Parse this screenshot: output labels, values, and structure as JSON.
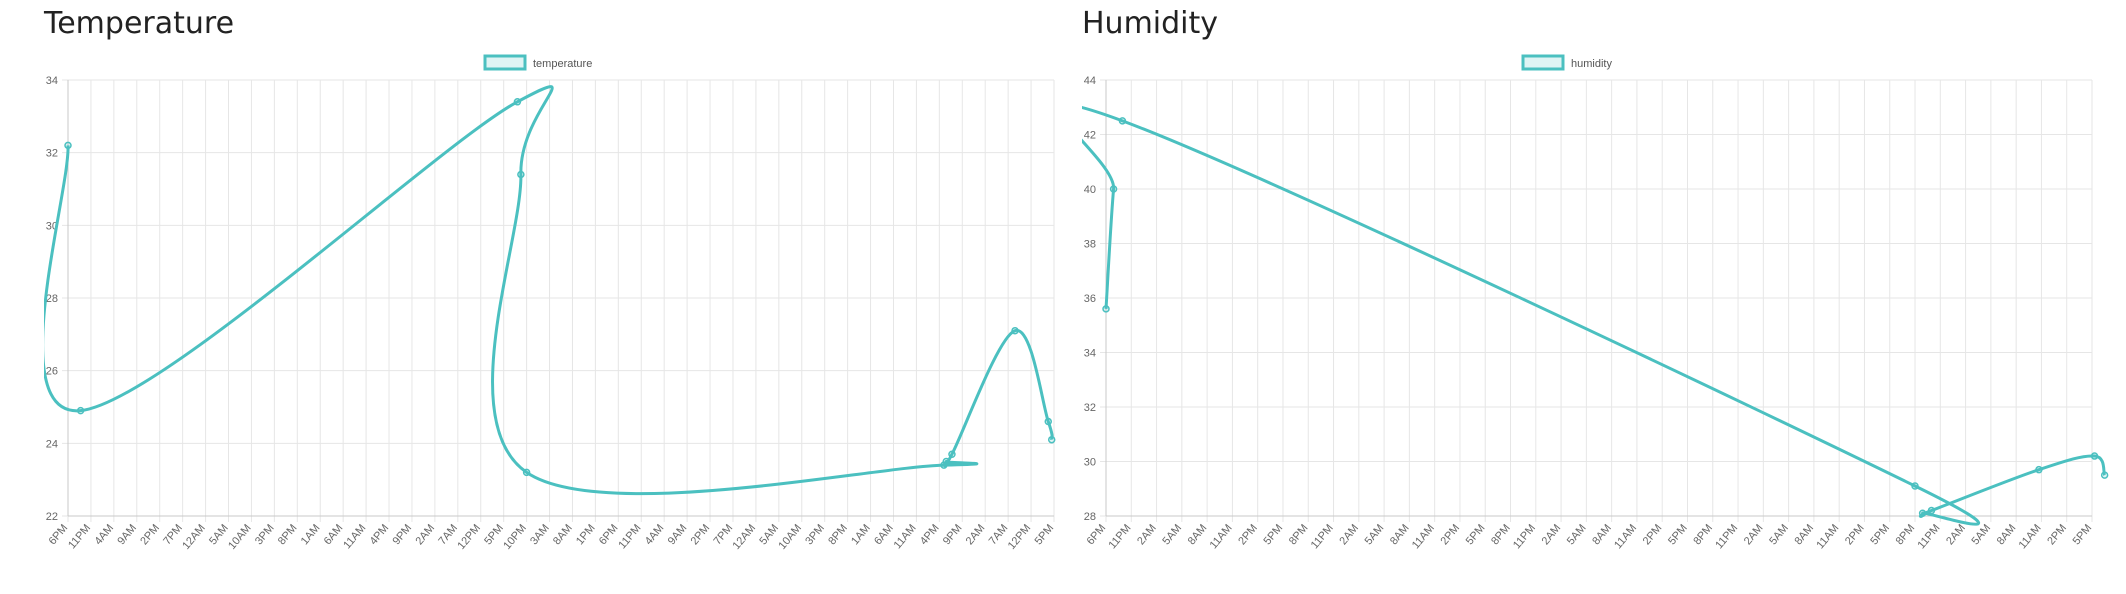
{
  "colors": {
    "line": "#4bc0c0",
    "fill": "rgba(75,192,192,0.18)",
    "grid": "#e6e6e6",
    "axis": "#c9c9c9"
  },
  "charts": [
    {
      "title": "Temperature",
      "chart_data": {
        "type": "line",
        "title": "Temperature",
        "xlabel": "",
        "ylabel": "",
        "ylim": [
          22,
          34
        ],
        "yticks": [
          22,
          24,
          26,
          28,
          30,
          32,
          34
        ],
        "legend": "top-center",
        "grid": true,
        "x_tick_labels": [
          "6PM",
          "11PM",
          "4AM",
          "9AM",
          "2PM",
          "7PM",
          "12AM",
          "5AM",
          "10AM",
          "3PM",
          "8PM",
          "1AM",
          "6AM",
          "11AM",
          "4PM",
          "9PM",
          "2AM",
          "7AM",
          "12PM",
          "5PM",
          "10PM",
          "3AM",
          "8AM",
          "1PM",
          "6PM",
          "11PM",
          "4AM",
          "9AM",
          "2PM",
          "7PM",
          "12AM",
          "5AM",
          "10AM",
          "3PM",
          "8PM",
          "1AM",
          "6AM",
          "11AM",
          "4PM",
          "9PM",
          "2AM",
          "7AM",
          "12PM",
          "5PM"
        ],
        "series": [
          {
            "name": "temperature",
            "points": [
              {
                "x": 0.0,
                "y": 32.2
              },
              {
                "x": 0.55,
                "y": 24.9
              },
              {
                "x": 19.6,
                "y": 33.4
              },
              {
                "x": 19.75,
                "y": 31.4
              },
              {
                "x": 20.0,
                "y": 23.2
              },
              {
                "x": 38.2,
                "y": 23.4
              },
              {
                "x": 38.3,
                "y": 23.5
              },
              {
                "x": 38.55,
                "y": 23.7
              },
              {
                "x": 41.3,
                "y": 27.1
              },
              {
                "x": 42.75,
                "y": 24.6
              },
              {
                "x": 42.9,
                "y": 24.1
              }
            ]
          }
        ]
      }
    },
    {
      "title": "Humidity",
      "chart_data": {
        "type": "line",
        "title": "Humidity",
        "xlabel": "",
        "ylabel": "",
        "ylim": [
          28,
          44
        ],
        "yticks": [
          28,
          30,
          32,
          34,
          36,
          38,
          40,
          42,
          44
        ],
        "legend": "top-center",
        "grid": true,
        "x_tick_labels": [
          "6PM",
          "11PM",
          "2AM",
          "5AM",
          "8AM",
          "11AM",
          "2PM",
          "5PM",
          "8PM",
          "11PM",
          "2AM",
          "5AM",
          "8AM",
          "11AM",
          "2PM",
          "5PM",
          "8PM",
          "11PM",
          "2AM",
          "5AM",
          "8AM",
          "11AM",
          "2PM",
          "5PM",
          "8PM",
          "11PM",
          "2AM",
          "5AM",
          "8AM",
          "11AM",
          "2PM",
          "5PM",
          "8PM",
          "11PM",
          "2AM",
          "5AM",
          "8AM",
          "11AM",
          "2PM",
          "5PM"
        ],
        "series": [
          {
            "name": "humidity",
            "points": [
              {
                "x": 0.0,
                "y": 35.6
              },
              {
                "x": 0.3,
                "y": 40.0
              },
              {
                "x": 0.65,
                "y": 42.5
              },
              {
                "x": 32.0,
                "y": 29.1
              },
              {
                "x": 32.3,
                "y": 28.1
              },
              {
                "x": 32.65,
                "y": 28.2
              },
              {
                "x": 36.9,
                "y": 29.7
              },
              {
                "x": 39.1,
                "y": 30.2
              },
              {
                "x": 39.5,
                "y": 29.5
              }
            ]
          }
        ]
      }
    }
  ]
}
